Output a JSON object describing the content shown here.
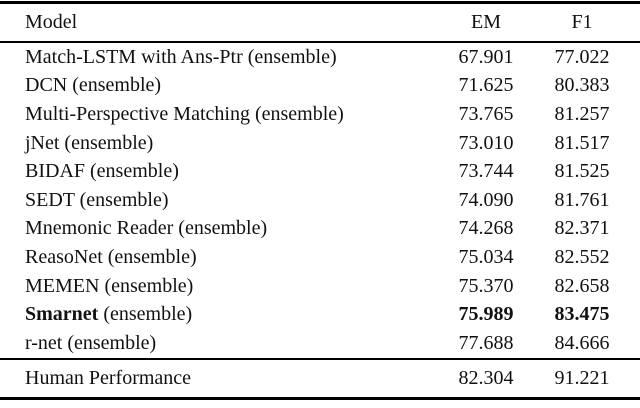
{
  "colors": {
    "background": "#ffffff",
    "text": "#111111",
    "rule": "#000000"
  },
  "table": {
    "header": {
      "model": "Model",
      "em": "EM",
      "f1": "F1"
    },
    "rows": [
      {
        "model": [
          [
            "Match-LSTM with Ans-Ptr (ensemble)",
            false
          ]
        ],
        "em": [
          "67.901",
          false
        ],
        "f1": [
          "77.022",
          false
        ]
      },
      {
        "model": [
          [
            "DCN (ensemble)",
            false
          ]
        ],
        "em": [
          "71.625",
          false
        ],
        "f1": [
          "80.383",
          false
        ]
      },
      {
        "model": [
          [
            "Multi-Perspective Matching (ensemble)",
            false
          ]
        ],
        "em": [
          "73.765",
          false
        ],
        "f1": [
          "81.257",
          false
        ]
      },
      {
        "model": [
          [
            "jNet (ensemble)",
            false
          ]
        ],
        "em": [
          "73.010",
          false
        ],
        "f1": [
          "81.517",
          false
        ]
      },
      {
        "model": [
          [
            "BIDAF (ensemble)",
            false
          ]
        ],
        "em": [
          "73.744",
          false
        ],
        "f1": [
          "81.525",
          false
        ]
      },
      {
        "model": [
          [
            "SEDT (ensemble)",
            false
          ]
        ],
        "em": [
          "74.090",
          false
        ],
        "f1": [
          "81.761",
          false
        ]
      },
      {
        "model": [
          [
            "Mnemonic Reader (ensemble)",
            false
          ]
        ],
        "em": [
          "74.268",
          false
        ],
        "f1": [
          "82.371",
          false
        ]
      },
      {
        "model": [
          [
            "ReasoNet (ensemble)",
            false
          ]
        ],
        "em": [
          "75.034",
          false
        ],
        "f1": [
          "82.552",
          false
        ]
      },
      {
        "model": [
          [
            "MEMEN (ensemble)",
            false
          ]
        ],
        "em": [
          "75.370",
          false
        ],
        "f1": [
          "82.658",
          false
        ]
      },
      {
        "model": [
          [
            "Smarnet",
            true
          ],
          [
            " (ensemble)",
            false
          ]
        ],
        "em": [
          "75.989",
          true
        ],
        "f1": [
          "83.475",
          true
        ]
      },
      {
        "model": [
          [
            "r-net (ensemble)",
            false
          ]
        ],
        "em": [
          "77.688",
          false
        ],
        "f1": [
          "84.666",
          false
        ]
      }
    ],
    "footer": {
      "model": "Human Performance",
      "em": "82.304",
      "f1": "91.221"
    }
  }
}
